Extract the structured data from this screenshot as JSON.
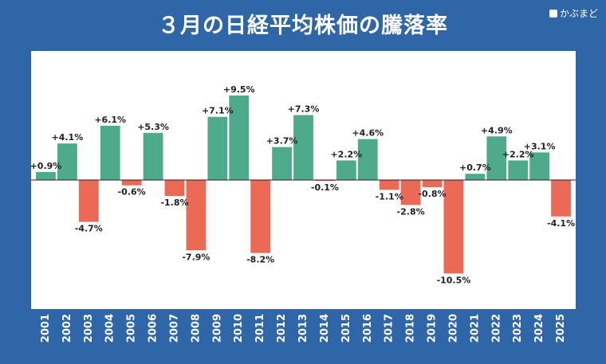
{
  "title": "３月の日経平均株価の騰落率",
  "brand": "かぶまど",
  "colors": {
    "positive": "#4daa8a",
    "negative": "#ec6a55",
    "frame": "#2f66a8",
    "plot_bg": "#ffffff"
  },
  "chart_data": {
    "type": "bar",
    "title": "３月の日経平均株価の騰落率",
    "xlabel": "",
    "ylabel": "",
    "categories": [
      "2001",
      "2002",
      "2003",
      "2004",
      "2005",
      "2006",
      "2007",
      "2008",
      "2009",
      "2010",
      "2011",
      "2012",
      "2013",
      "2014",
      "2015",
      "2016",
      "2017",
      "2018",
      "2019",
      "2020",
      "2021",
      "2022",
      "2023",
      "2024",
      "2025"
    ],
    "values": [
      0.9,
      4.1,
      -4.7,
      6.1,
      -0.6,
      5.3,
      -1.8,
      -7.9,
      7.1,
      9.5,
      -8.2,
      3.7,
      7.3,
      -0.1,
      2.2,
      4.6,
      -1.1,
      -2.8,
      -0.8,
      -10.5,
      0.7,
      4.9,
      2.2,
      3.1,
      -4.1
    ],
    "data_labels": [
      "+0.9%",
      "+4.1%",
      "-4.7%",
      "+6.1%",
      "-0.6%",
      "+5.3%",
      "-1.8%",
      "-7.9%",
      "+7.1%",
      "+9.5%",
      "-8.2%",
      "+3.7%",
      "+7.3%",
      "-0.1%",
      "+2.2%",
      "+4.6%",
      "-1.1%",
      "-2.8%",
      "-0.8%",
      "-10.5%",
      "+0.7%",
      "+4.9%",
      "+2.2%",
      "+3.1%",
      "-4.1%"
    ],
    "ylim": [
      -14.5,
      14.5
    ],
    "grid": false,
    "legend": "none"
  }
}
